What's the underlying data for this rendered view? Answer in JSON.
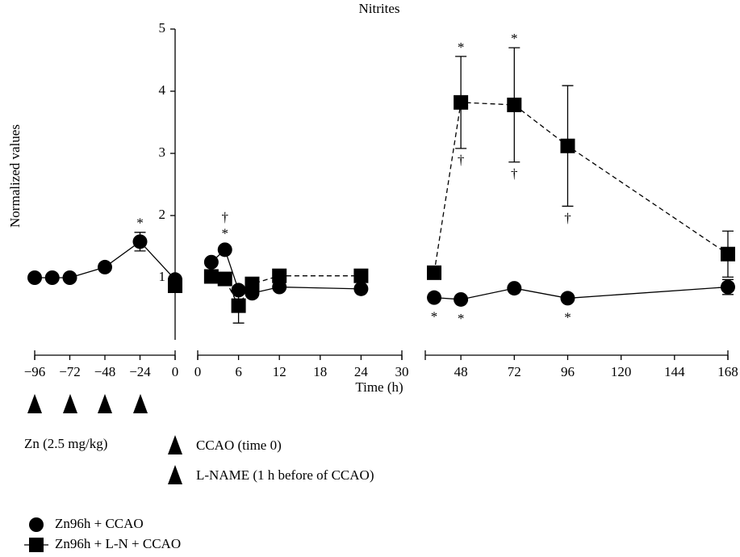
{
  "chart_data": {
    "type": "line",
    "title": "Nitrites",
    "ylabel": "Normalized values",
    "xlabel": "Time (h)",
    "ylim": [
      0,
      5
    ],
    "yticks": [
      1,
      2,
      3,
      4,
      5
    ],
    "series": [
      {
        "name": "Zn96h + CCAO",
        "color": "#000000",
        "marker": "circle",
        "dash": false
      },
      {
        "name": "Zn96h + L-N + CCAO",
        "color": "#000000",
        "marker": "square",
        "dash": true
      }
    ],
    "segments": [
      {
        "xlim": [
          -96,
          0
        ],
        "xticks": [
          {
            "value": -96,
            "label": "−96"
          },
          {
            "value": -72,
            "label": "−72"
          },
          {
            "value": -48,
            "label": "−48"
          },
          {
            "value": -24,
            "label": "−24"
          },
          0
        ],
        "x": [
          -96,
          -84,
          -72,
          -48,
          -24,
          0
        ],
        "series": [
          {
            "values": [
              1.0,
              1.0,
              1.0,
              1.17,
              1.58,
              0.97
            ],
            "errors": [
              null,
              null,
              null,
              null,
              0.15,
              null
            ],
            "above": [
              null,
              null,
              null,
              null,
              [
                "*"
              ],
              null
            ],
            "below": [
              null,
              null,
              null,
              null,
              null,
              null
            ]
          },
          {
            "values": [
              null,
              null,
              null,
              null,
              null,
              0.87
            ],
            "errors": [
              null,
              null,
              null,
              null,
              null,
              null
            ],
            "above": [
              null,
              null,
              null,
              null,
              null,
              null
            ],
            "below": [
              null,
              null,
              null,
              null,
              null,
              null
            ]
          }
        ]
      },
      {
        "xlim": [
          0,
          30
        ],
        "xticks": [
          0,
          6,
          12,
          18,
          24,
          30
        ],
        "x": [
          2,
          4,
          6,
          8,
          12,
          24
        ],
        "series": [
          {
            "values": [
              1.25,
              1.45,
              0.8,
              0.75,
              0.85,
              0.82
            ],
            "errors": [
              null,
              null,
              null,
              null,
              null,
              null
            ],
            "above": [
              null,
              [
                "*",
                "†"
              ],
              null,
              null,
              null,
              null
            ],
            "below": [
              null,
              null,
              null,
              null,
              null,
              null
            ]
          },
          {
            "values": [
              1.02,
              0.98,
              0.55,
              0.9,
              1.03,
              1.03
            ],
            "errors": [
              null,
              null,
              0.28,
              null,
              null,
              null
            ],
            "above": [
              null,
              null,
              null,
              null,
              null,
              null
            ],
            "below": [
              null,
              null,
              null,
              null,
              null,
              null
            ]
          }
        ]
      },
      {
        "xlim": [
          32,
          168
        ],
        "xticks": [
          48,
          72,
          96,
          120,
          144,
          168
        ],
        "x": [
          36,
          48,
          72,
          96,
          168
        ],
        "series": [
          {
            "values": [
              0.68,
              0.65,
              0.83,
              0.67,
              0.85
            ],
            "errors": [
              null,
              null,
              null,
              null,
              0.12
            ],
            "above": [
              null,
              null,
              null,
              null,
              null
            ],
            "below": [
              [
                "*"
              ],
              [
                "*"
              ],
              null,
              [
                "*"
              ],
              null
            ]
          },
          {
            "values": [
              1.08,
              3.82,
              3.78,
              3.12,
              1.38
            ],
            "errors": [
              null,
              0.74,
              0.92,
              0.97,
              0.37
            ],
            "above": [
              null,
              [
                "*"
              ],
              [
                "*"
              ],
              null,
              null
            ],
            "below": [
              null,
              [
                "†"
              ],
              [
                "†"
              ],
              [
                "†"
              ],
              null
            ]
          }
        ]
      }
    ]
  },
  "annotations": {
    "zn_label": "Zn (2.5 mg/kg)",
    "ccao_label": "CCAO (time 0)",
    "lname_label": "L-NAME (1 h before of CCAO)"
  }
}
